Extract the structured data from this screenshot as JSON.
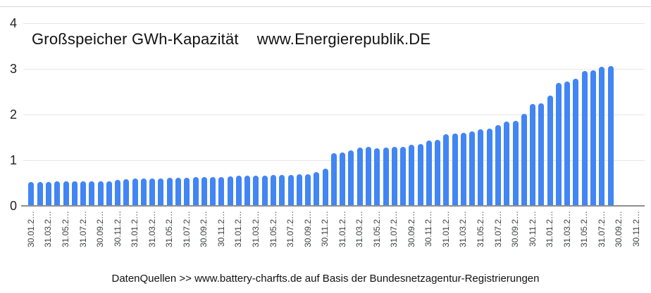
{
  "caption": "DatenQuellen >> www.battery-charfts.de auf Basis der Bundesnetzagentur-Registrierungen",
  "chart_data": {
    "type": "bar",
    "title": "Großspeicher GWh-Kapazität",
    "annotation": "www.Energierepublik.DE",
    "ylabel": "",
    "xlabel": "",
    "ylim": [
      0,
      4
    ],
    "yticks": [
      "0",
      "1",
      "2",
      "3",
      "4"
    ],
    "grid": true,
    "legend_position": "none",
    "bar_color": "#4285f4",
    "gridline_color": "#e6e6e6",
    "axis_color": "#8f8f8f",
    "values": [
      0.51,
      0.51,
      0.51,
      0.52,
      0.52,
      0.52,
      0.52,
      0.52,
      0.53,
      0.53,
      0.56,
      0.57,
      0.58,
      0.58,
      0.59,
      0.59,
      0.6,
      0.6,
      0.6,
      0.61,
      0.61,
      0.61,
      0.62,
      0.63,
      0.64,
      0.65,
      0.65,
      0.65,
      0.66,
      0.66,
      0.66,
      0.67,
      0.68,
      0.73,
      0.8,
      1.14,
      1.16,
      1.2,
      1.26,
      1.27,
      1.25,
      1.26,
      1.27,
      1.27,
      1.33,
      1.34,
      1.41,
      1.43,
      1.56,
      1.57,
      1.58,
      1.62,
      1.66,
      1.68,
      1.76,
      1.83,
      1.84,
      2.0,
      2.21,
      2.23,
      2.4,
      2.67,
      2.7,
      2.77,
      2.94,
      2.96,
      3.03,
      3.05
    ],
    "x_tick_labels": [
      "30.01.2…",
      "31.03.2…",
      "31.05.2…",
      "31.07.2…",
      "30.09.2…",
      "30.11.2…",
      "31.01.2…",
      "31.03.2…",
      "31.05.2…",
      "31.07.2…",
      "30.09.2…",
      "30.11.2…",
      "31.01.2…",
      "31.03.2…",
      "31.05.2…",
      "31.07.2…",
      "30.09.2…",
      "30.11.2…",
      "31.01.2…",
      "31.03.2…",
      "31.05.2…",
      "31.07.2…",
      "30.09.2…",
      "30.11.2…",
      "31.01.2…",
      "31.03.2…",
      "31.05.2…",
      "31.07.2…",
      "30.09.2…",
      "30.11.2…",
      "31.01.2…",
      "31.03.2…",
      "31.05.2…",
      "31.07.2…",
      "30.09.2…",
      "30.11.2…"
    ],
    "x_tick_every_n_bars": 2
  }
}
